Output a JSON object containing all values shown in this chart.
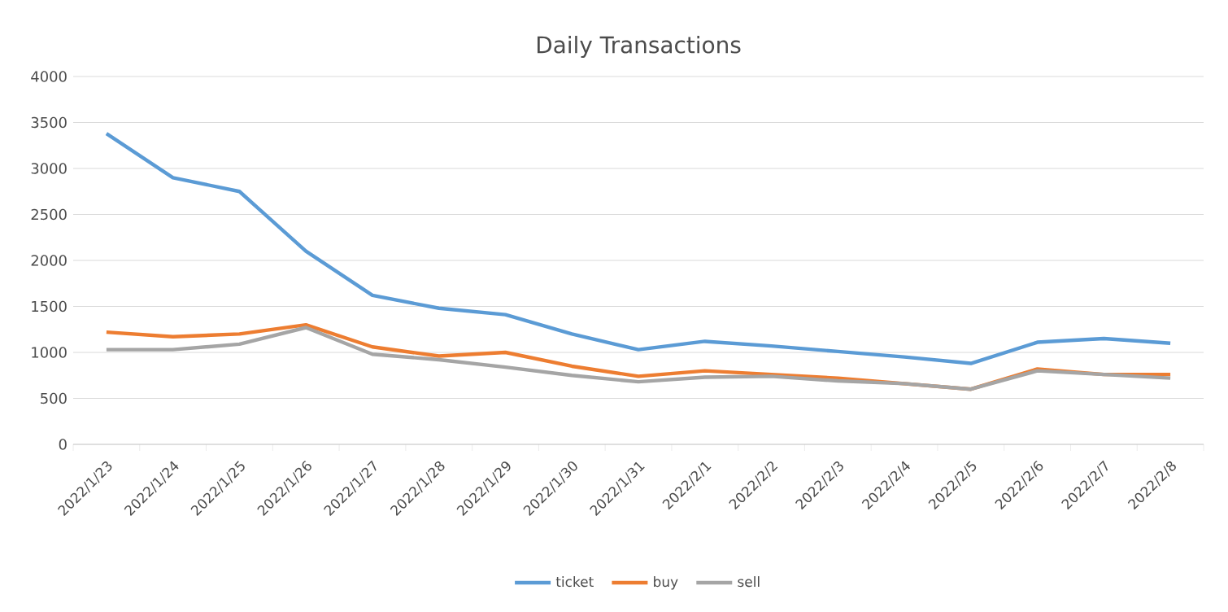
{
  "chart_data": {
    "type": "line",
    "title": "Daily Transactions",
    "categories": [
      "2022/1/23",
      "2022/1/24",
      "2022/1/25",
      "2022/1/26",
      "2022/1/27",
      "2022/1/28",
      "2022/1/29",
      "2022/1/30",
      "2022/1/31",
      "2022/2/1",
      "2022/2/2",
      "2022/2/3",
      "2022/2/4",
      "2022/2/5",
      "2022/2/6",
      "2022/2/7",
      "2022/2/8"
    ],
    "series": [
      {
        "name": "ticket",
        "color": "#5b9bd5",
        "values": [
          3380,
          2900,
          2750,
          2100,
          1620,
          1480,
          1410,
          1200,
          1030,
          1120,
          1070,
          1010,
          950,
          880,
          1110,
          1150,
          1100
        ]
      },
      {
        "name": "buy",
        "color": "#ed7d31",
        "values": [
          1220,
          1170,
          1200,
          1300,
          1060,
          960,
          1000,
          850,
          740,
          800,
          760,
          720,
          660,
          600,
          820,
          760,
          760
        ]
      },
      {
        "name": "sell",
        "color": "#a5a5a5",
        "values": [
          1030,
          1030,
          1090,
          1270,
          980,
          920,
          840,
          750,
          680,
          730,
          740,
          690,
          660,
          600,
          800,
          760,
          720
        ]
      }
    ],
    "ylim": [
      0,
      4000
    ],
    "yticks": [
      0,
      500,
      1000,
      1500,
      2000,
      2500,
      3000,
      3500,
      4000
    ],
    "grid": "y",
    "legend": "bottom",
    "marker": "none",
    "line_style": "solid"
  }
}
